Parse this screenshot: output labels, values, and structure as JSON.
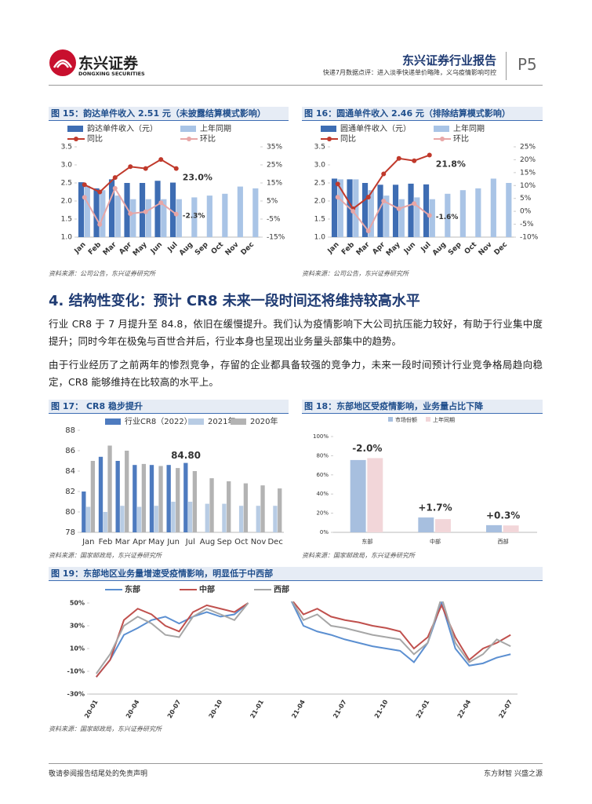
{
  "header": {
    "logo": "东兴证券",
    "logo_en": "DONGXING SECURITIES",
    "report_type": "东兴证券行业报告",
    "subtitle": "快递7月数据点评：进入淡季快递单价略降，义乌疫情影响可控",
    "page": "P5"
  },
  "section": {
    "heading": "4. 结构性变化：预计 CR8 未来一段时间还将维持较高水平",
    "paragraphs": [
      "行业 CR8 于 7 月提升至 84.8，依旧在缓慢提升。我们认为疫情影响下大公司抗压能力较好，有助于行业集中度提升；同时今年在极兔与百世合并后，行业本身也呈现出业务量头部集中的趋势。",
      "由于行业经历了之前两年的惨烈竞争，存留的企业都具备较强的竞争力，未来一段时间预计行业竞争格局趋向稳定，CR8 能够维持在比较高的水平上。"
    ]
  },
  "footer": {
    "left": "敬请参阅报告结尾处的免责声明",
    "right": "东方财智 兴盛之源"
  },
  "chart_data": [
    {
      "type": "combo",
      "title": "图 15：韵达单件收入 2.51 元（未披露结算模式影响）",
      "source": "资料来源：公司公告，东兴证券研究所",
      "categories": [
        "Jan",
        "Feb",
        "Mar",
        "Apr",
        "May",
        "Jun",
        "Jul",
        "Aug",
        "Sep",
        "Oct",
        "Nov",
        "Dec"
      ],
      "ylim": [
        1,
        3.5
      ],
      "yticks": [
        {
          "value": 1,
          "label": "1.0"
        },
        1.5,
        {
          "value": 2,
          "label": "2.0"
        },
        2.5,
        {
          "value": 3,
          "label": "3.0"
        },
        3.5
      ],
      "y2lim": [
        -15,
        35
      ],
      "y2ticks": [
        {
          "value": -15,
          "label": "-15%"
        },
        {
          "value": -5,
          "label": "-5%"
        },
        {
          "value": 5,
          "label": "5%"
        },
        {
          "value": 15,
          "label": "15%"
        },
        {
          "value": 25,
          "label": "25%"
        },
        {
          "value": 35,
          "label": "35%"
        }
      ],
      "series": [
        {
          "name": "韵达单件收入（元）",
          "kind": "bar",
          "color": "#3e6db3",
          "values": [
            2.52,
            2.35,
            2.6,
            2.5,
            2.5,
            2.56,
            2.51,
            null,
            null,
            null,
            null,
            null
          ]
        },
        {
          "name": "上年同期",
          "kind": "bar",
          "color": "#a9c4e6",
          "values": [
            2.42,
            2.3,
            2.15,
            2.05,
            2.05,
            2.05,
            2.05,
            2.1,
            2.15,
            2.2,
            2.4,
            2.35
          ]
        },
        {
          "name": "同比",
          "kind": "line",
          "axis": "y2",
          "marker": true,
          "color": "#c0392b",
          "values": [
            14,
            10,
            18,
            24,
            23,
            28,
            23.0,
            null,
            null,
            null,
            null,
            null
          ],
          "value_labels": [
            null,
            null,
            null,
            null,
            null,
            null,
            "23.0%",
            null,
            null,
            null,
            null,
            null
          ]
        },
        {
          "name": "环比",
          "kind": "line",
          "axis": "y2",
          "marker": true,
          "color": "#e8a6a6",
          "values": [
            7,
            -8,
            12,
            -2,
            -1,
            4,
            -2.3,
            null,
            null,
            null,
            null,
            null
          ],
          "value_labels": [
            null,
            null,
            null,
            null,
            null,
            null,
            "-2.3%",
            null,
            null,
            null,
            null,
            null
          ]
        }
      ]
    },
    {
      "type": "combo",
      "title": "图 16：圆通单件收入 2.46 元（排除结算模式影响）",
      "source": "资料来源：公司公告，东兴证券研究所",
      "categories": [
        "Jan",
        "Feb",
        "Mar",
        "Apr",
        "May",
        "Jun",
        "Jul",
        "Aug",
        "Sep",
        "Oct",
        "Nov",
        "Dec"
      ],
      "ylim": [
        1,
        3.5
      ],
      "yticks": [
        {
          "value": 1,
          "label": "1.0"
        },
        1.5,
        {
          "value": 2,
          "label": "2.0"
        },
        2.5,
        {
          "value": 3,
          "label": "3.0"
        },
        3.5
      ],
      "y2lim": [
        -10,
        25
      ],
      "y2ticks": [
        {
          "value": -10,
          "label": "-10%"
        },
        {
          "value": -5,
          "label": "-5%"
        },
        {
          "value": 0,
          "label": "0%"
        },
        {
          "value": 5,
          "label": "5%"
        },
        {
          "value": 10,
          "label": "10%"
        },
        {
          "value": 15,
          "label": "15%"
        },
        {
          "value": 20,
          "label": "20%"
        },
        {
          "value": 25,
          "label": "25%"
        }
      ],
      "series": [
        {
          "name": "圆通单件收入（元）",
          "kind": "bar",
          "color": "#3e6db3",
          "values": [
            2.62,
            2.6,
            2.5,
            2.45,
            2.45,
            2.48,
            2.46,
            null,
            null,
            null,
            null,
            null
          ]
        },
        {
          "name": "上年同期",
          "kind": "bar",
          "color": "#a9c4e6",
          "values": [
            2.6,
            2.6,
            2.3,
            2.15,
            2.05,
            2.1,
            2.05,
            2.2,
            2.3,
            2.35,
            2.62,
            2.5
          ]
        },
        {
          "name": "同比",
          "kind": "line",
          "axis": "y2",
          "marker": true,
          "color": "#c0392b",
          "values": [
            10.6,
            1,
            5.5,
            14.5,
            20.5,
            19.6,
            21.8,
            null,
            null,
            null,
            null,
            null
          ],
          "value_labels": [
            null,
            null,
            null,
            null,
            null,
            null,
            "21.8%",
            null,
            null,
            null,
            null,
            null
          ]
        },
        {
          "name": "环比",
          "kind": "line",
          "axis": "y2",
          "marker": true,
          "color": "#e8a6a6",
          "values": [
            5.5,
            0,
            -7.6,
            4,
            1,
            3,
            -1.6,
            null,
            null,
            null,
            null,
            null
          ],
          "value_labels": [
            null,
            null,
            null,
            null,
            null,
            null,
            "-1.6%",
            null,
            null,
            null,
            null,
            null
          ]
        }
      ]
    },
    {
      "type": "bar",
      "title": "图 17：  CR8 稳步提升",
      "source": "资料来源：国家邮政局，东兴证券研究所",
      "categories": [
        "Jan",
        "Feb",
        "Mar",
        "Apr",
        "May",
        "Jun",
        "Jul",
        "Aug",
        "Sep",
        "Oct",
        "Nov",
        "Dec"
      ],
      "ylim": [
        78,
        88
      ],
      "yticks": [
        78,
        80,
        82,
        84,
        86,
        88
      ],
      "series": [
        {
          "name": "行业CR8（2022）",
          "color": "#4e7bbf",
          "values": [
            82,
            85.4,
            85,
            84.6,
            84.6,
            84.6,
            84.8,
            null,
            null,
            null,
            null,
            null
          ],
          "value_labels": [
            null,
            null,
            null,
            null,
            null,
            null,
            "84.80",
            null,
            null,
            null,
            null,
            null
          ]
        },
        {
          "name": "2021年",
          "color": "#b8cce4",
          "values": [
            80.5,
            80,
            80.6,
            80.5,
            80.6,
            81,
            81,
            80.8,
            80.8,
            80.6,
            80.6,
            80.6
          ]
        },
        {
          "name": "2020年",
          "color": "#b3b3b3",
          "values": [
            85,
            86.5,
            86,
            84.7,
            84.5,
            84.3,
            84,
            83.3,
            83,
            82.8,
            82.6,
            82.3
          ]
        }
      ]
    },
    {
      "type": "bar",
      "title": "图 18：东部地区受疫情影响，业务量占比下降",
      "source": "资料来源：国家邮政局，东兴证券研究所",
      "categories": [
        "东部",
        "中部",
        "西部"
      ],
      "ylim": [
        0,
        100
      ],
      "yticks": [
        {
          "value": 0,
          "label": "0%"
        },
        {
          "value": 20,
          "label": "20%"
        },
        {
          "value": 40,
          "label": "40%"
        },
        {
          "value": 60,
          "label": "60%"
        },
        {
          "value": 80,
          "label": "80%"
        },
        {
          "value": 100,
          "label": "100%"
        }
      ],
      "annotations": [
        "-2.0%",
        "+1.7%",
        "+0.3%"
      ],
      "annotation_colors": [
        "#2f5da8",
        "#c0392b",
        "#c0392b"
      ],
      "series": [
        {
          "name": "市场份额",
          "color": "#a7bfdf",
          "values": [
            75.5,
            15.5,
            7.5
          ]
        },
        {
          "name": "上年同期",
          "color": "#f2d6d9",
          "values": [
            77.5,
            13.8,
            7.2
          ]
        }
      ]
    },
    {
      "type": "line",
      "title": "图 19：东部地区业务量增速受疫情影响，明显低于中西部",
      "source": "资料来源：国家邮政局，东兴证券研究所",
      "categories": [
        "20-01",
        null,
        null,
        "20-04",
        null,
        null,
        "20-07",
        null,
        null,
        "20-10",
        null,
        null,
        "21-01",
        null,
        null,
        "21-04",
        null,
        null,
        "21-07",
        null,
        null,
        "21-10",
        null,
        null,
        "22-01",
        null,
        null,
        "22-04",
        null,
        null,
        "22-07"
      ],
      "ylim": [
        -30,
        50
      ],
      "yticks": [
        {
          "value": -30,
          "label": "-30%"
        },
        {
          "value": -10,
          "label": "-10%"
        },
        {
          "value": 10,
          "label": "10%"
        },
        {
          "value": 30,
          "label": "30%"
        },
        {
          "value": 50,
          "label": "50%"
        }
      ],
      "series": [
        {
          "name": "东部",
          "color": "#5b8fd1",
          "values": [
            -15,
            0,
            22,
            28,
            35,
            38,
            32,
            38,
            42,
            38,
            40,
            50,
            null,
            null,
            55,
            30,
            25,
            22,
            18,
            15,
            12,
            10,
            8,
            -2,
            15,
            50,
            10,
            -5,
            -3,
            2,
            5
          ]
        },
        {
          "name": "中部",
          "color": "#c0504d",
          "values": [
            -15,
            0,
            35,
            45,
            40,
            30,
            25,
            42,
            48,
            45,
            42,
            50,
            null,
            null,
            55,
            40,
            45,
            38,
            35,
            33,
            30,
            28,
            25,
            10,
            20,
            48,
            20,
            0,
            10,
            15,
            22
          ]
        },
        {
          "name": "西部",
          "color": "#a6a6a6",
          "values": [
            -12,
            5,
            30,
            38,
            32,
            22,
            20,
            38,
            45,
            40,
            35,
            50,
            null,
            null,
            55,
            35,
            40,
            30,
            28,
            25,
            22,
            20,
            18,
            5,
            15,
            55,
            15,
            -2,
            5,
            18,
            12
          ]
        }
      ]
    }
  ]
}
